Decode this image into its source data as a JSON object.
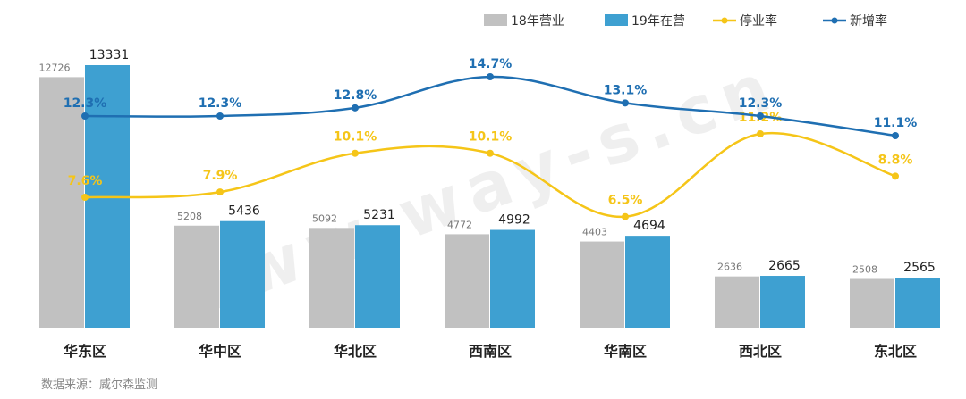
{
  "chart_data": {
    "type": "bar",
    "categories": [
      "华东区",
      "华中区",
      "华北区",
      "西南区",
      "华南区",
      "西北区",
      "东北区"
    ],
    "series": [
      {
        "name": "18年营业",
        "kind": "bar",
        "color": "#c1c1c1",
        "values": [
          12726,
          5208,
          5092,
          4772,
          4403,
          2636,
          2508
        ],
        "labels": [
          "12726",
          "5208",
          "5092",
          "4772",
          "4403",
          "2636",
          "2508"
        ]
      },
      {
        "name": "19年在营",
        "kind": "bar",
        "color": "#3ea0d1",
        "values": [
          13331,
          5436,
          5231,
          4992,
          4694,
          2665,
          2565
        ],
        "labels": [
          "13331",
          "5436",
          "5231",
          "4992",
          "4694",
          "2665",
          "2565"
        ]
      },
      {
        "name": "停业率",
        "kind": "line",
        "color": "#f5c518",
        "values": [
          7.6,
          7.9,
          10.1,
          10.1,
          6.5,
          11.2,
          8.8
        ],
        "labels": [
          "7.6%",
          "7.9%",
          "10.1%",
          "10.1%",
          "6.5%",
          "11.2%",
          "8.8%"
        ]
      },
      {
        "name": "新增率",
        "kind": "line",
        "color": "#1f6fb2",
        "values": [
          12.3,
          12.3,
          12.8,
          14.7,
          13.1,
          12.3,
          11.1
        ],
        "labels": [
          "12.3%",
          "12.3%",
          "12.8%",
          "14.7%",
          "13.1%",
          "12.3%",
          "11.1%"
        ]
      }
    ],
    "legend_position": "top-right",
    "grid": false
  },
  "source_note": "数据来源：威尔森监测",
  "watermark_text": "www.way-s.cn"
}
